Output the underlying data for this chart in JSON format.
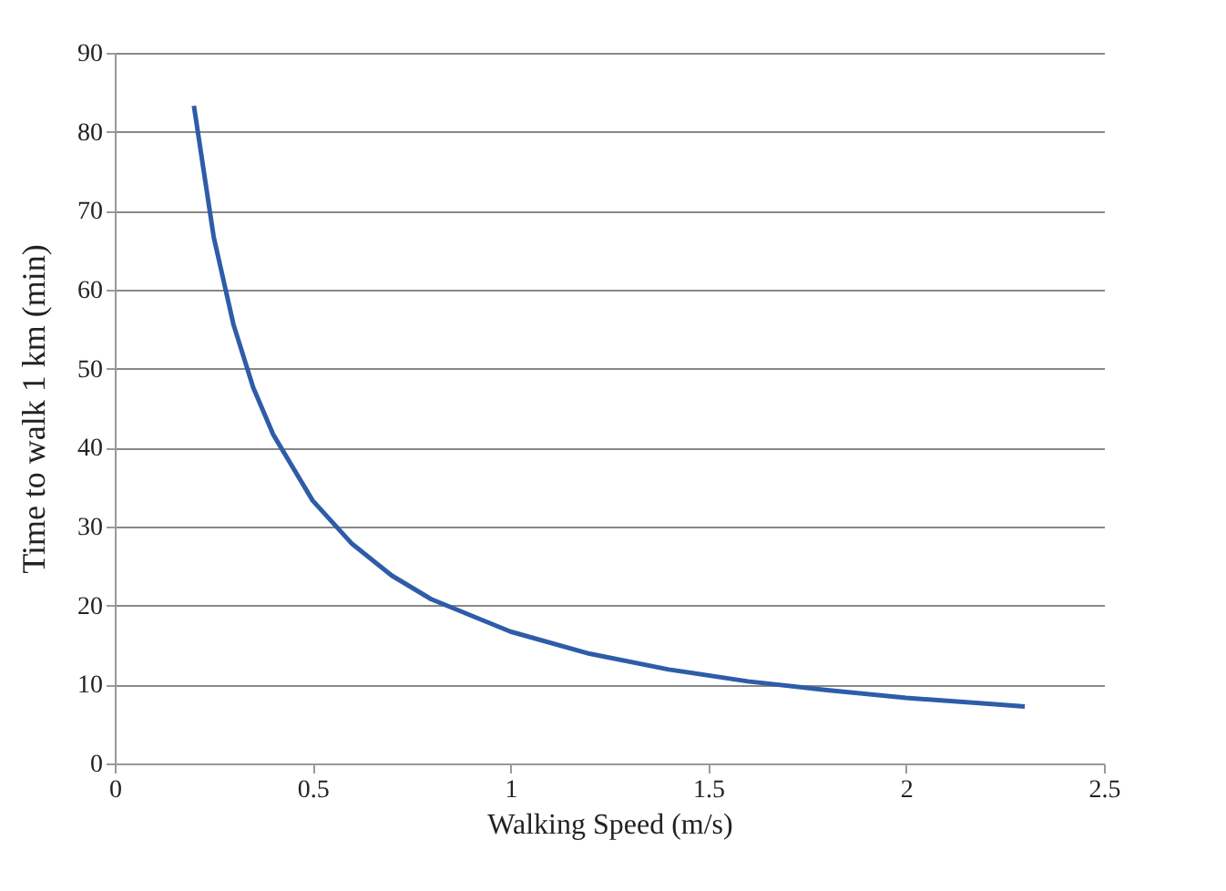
{
  "chart_data": {
    "type": "line",
    "xlabel": "Walking Speed (m/s)",
    "ylabel": "Time to walk 1 km (min)",
    "x": [
      0.2,
      0.25,
      0.3,
      0.35,
      0.4,
      0.5,
      0.6,
      0.7,
      0.8,
      1.0,
      1.2,
      1.4,
      1.6,
      1.8,
      2.0,
      2.2,
      2.3
    ],
    "series": [
      {
        "color": "#2e5ca8",
        "values": [
          83.3,
          66.7,
          55.6,
          47.6,
          41.7,
          33.3,
          27.8,
          23.8,
          20.8,
          16.7,
          13.9,
          11.9,
          10.4,
          9.3,
          8.3,
          7.6,
          7.2
        ]
      }
    ],
    "xlim": [
      0,
      2.5
    ],
    "xticks": [
      0,
      0.5,
      1,
      1.5,
      2,
      2.5
    ],
    "ylim": [
      0,
      90
    ],
    "yticks": [
      0,
      10,
      20,
      30,
      40,
      50,
      60,
      70,
      80,
      90
    ],
    "grid": "y",
    "marker": "none",
    "line_style": "solid"
  }
}
